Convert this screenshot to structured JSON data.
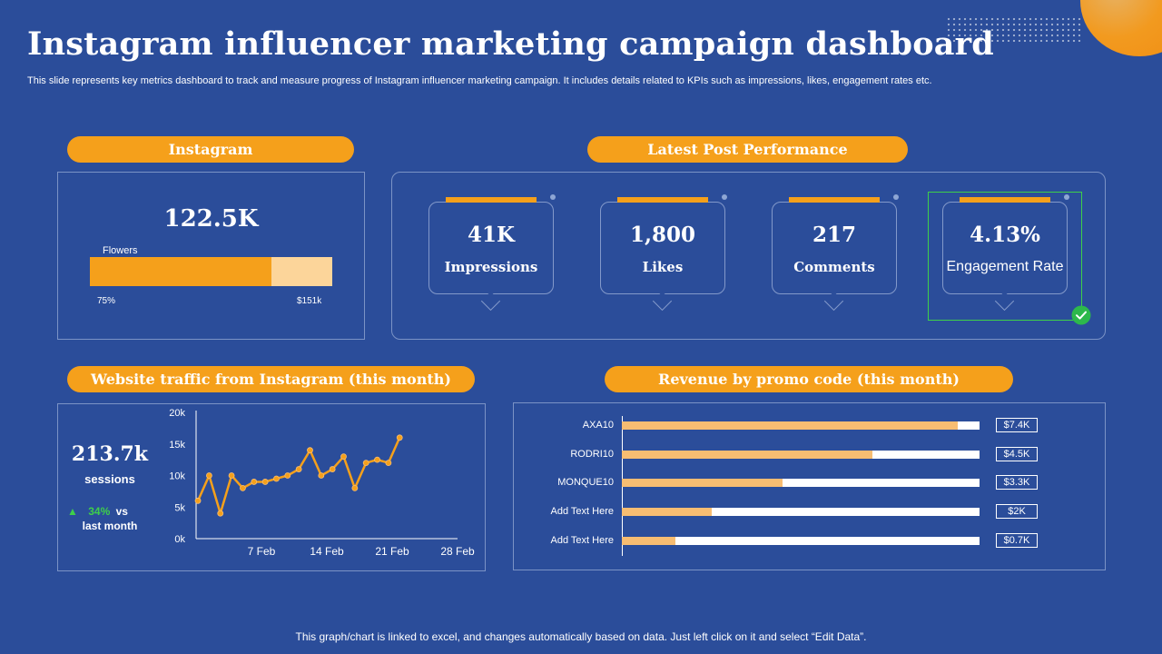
{
  "header": {
    "title": "Instagram influencer marketing campaign dashboard",
    "subtitle": "This slide represents key metrics dashboard to track and measure progress of Instagram influencer marketing campaign. It includes details related to KPIs such as impressions, likes, engagement rates etc."
  },
  "instagram": {
    "heading": "Instagram",
    "value": "122.5K",
    "bar_label": "Flowers",
    "progress": 0.75,
    "progress_label": "75%",
    "target_label": "$151k"
  },
  "post_performance": {
    "heading": "Latest Post Performance",
    "cards": [
      {
        "value": "41K",
        "label": "Impressions"
      },
      {
        "value": "1,800",
        "label": "Likes"
      },
      {
        "value": "217",
        "label": "Comments"
      },
      {
        "value": "4.13%",
        "label": "Engagement Rate"
      }
    ]
  },
  "traffic": {
    "heading": "Website traffic from Instagram (this month)",
    "sessions_value": "213.7k",
    "sessions_label": "sessions",
    "change_pct": "34%",
    "change_vs": "vs",
    "change_period": "last month"
  },
  "promo": {
    "heading": "Revenue by promo code (this month)"
  },
  "footer": "This graph/chart is linked to excel, and changes automatically based on data. Just left click on it and select “Edit Data”.",
  "colors": {
    "background": "#2b4d9a",
    "accent": "#f5a01b",
    "light_accent": "#f7bd72",
    "positive": "#3ecf4a"
  },
  "chart_data": [
    {
      "type": "line",
      "title": "",
      "xlabel": "",
      "ylabel": "",
      "ylim": [
        0,
        20000
      ],
      "y_ticks": [
        "0k",
        "5k",
        "10k",
        "15k",
        "20k"
      ],
      "y_tick_values": [
        0,
        5000,
        10000,
        15000,
        20000
      ],
      "x_ticks": [
        "7 Feb",
        "14 Feb",
        "21 Feb",
        "28 Feb"
      ],
      "x_tick_values": [
        7,
        14,
        21,
        28
      ],
      "xlim": [
        0,
        28
      ],
      "grid": false,
      "series": [
        {
          "x": [
            0.2,
            1.4,
            2.6,
            3.8,
            5.0,
            6.2,
            7.4,
            8.6,
            9.8,
            11.0,
            12.2,
            13.4,
            14.6,
            15.8,
            17.0,
            18.2,
            19.4,
            20.6,
            21.8
          ],
          "values": [
            6000,
            10000,
            4000,
            10000,
            8000,
            9000,
            9000,
            9500,
            10000,
            11000,
            14000,
            10000,
            11000,
            13000,
            8000,
            12000,
            12500,
            12000,
            16000
          ]
        }
      ]
    },
    {
      "type": "bar",
      "orientation": "horizontal",
      "title": "",
      "categories": [
        "AXA10",
        "RODRI10",
        "MONQUE10",
        "Add Text Here",
        "Add Text Here"
      ],
      "values": [
        7.4,
        4.5,
        3.3,
        2,
        0.7
      ],
      "fill_fractions": [
        0.94,
        0.7,
        0.45,
        0.25,
        0.15
      ],
      "value_labels": [
        "$7.4K",
        "$4.5K",
        "$3.3K",
        "$2K",
        "$0.7K"
      ]
    }
  ]
}
